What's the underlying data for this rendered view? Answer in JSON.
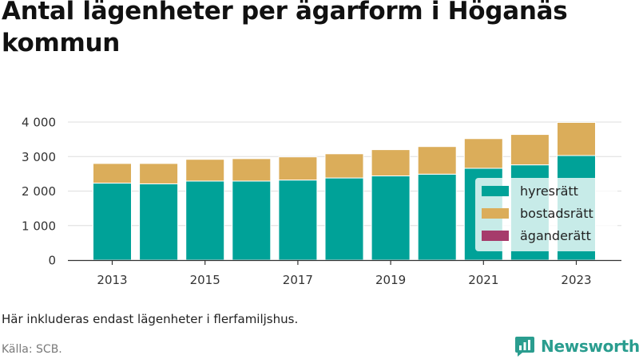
{
  "chart_data": {
    "type": "bar",
    "stacked": true,
    "title": "Antal lägenheter per ägarform i Höganäs kommun",
    "categories": [
      2013,
      2014,
      2015,
      2016,
      2017,
      2018,
      2019,
      2020,
      2021,
      2022,
      2023
    ],
    "x_tick_labels": [
      "2013",
      "2015",
      "2017",
      "2019",
      "2021",
      "2023"
    ],
    "y_tick_labels": [
      "0",
      "1 000",
      "2 000",
      "3 000",
      "4 000"
    ],
    "y_ticks": [
      0,
      1000,
      2000,
      3000,
      4000
    ],
    "ylim": [
      0,
      4000
    ],
    "grid": true,
    "legend_position": "bottom-right",
    "series": [
      {
        "name": "hyresrätt",
        "color": "#00a298",
        "values": [
          2230,
          2210,
          2290,
          2290,
          2320,
          2380,
          2440,
          2490,
          2660,
          2760,
          3030
        ]
      },
      {
        "name": "bostadsrätt",
        "color": "#dbad5a",
        "values": [
          570,
          590,
          630,
          650,
          670,
          700,
          760,
          800,
          860,
          880,
          960
        ]
      },
      {
        "name": "äganderätt",
        "color": "#a63b6b",
        "values": [
          0,
          0,
          0,
          0,
          0,
          0,
          0,
          0,
          0,
          0,
          0
        ]
      }
    ]
  },
  "note": "Här inkluderas endast lägenheter i flerfamiljshus.",
  "source": "Källa: SCB.",
  "logo": {
    "text": "Newsworthy",
    "color": "#2a9d8f"
  }
}
